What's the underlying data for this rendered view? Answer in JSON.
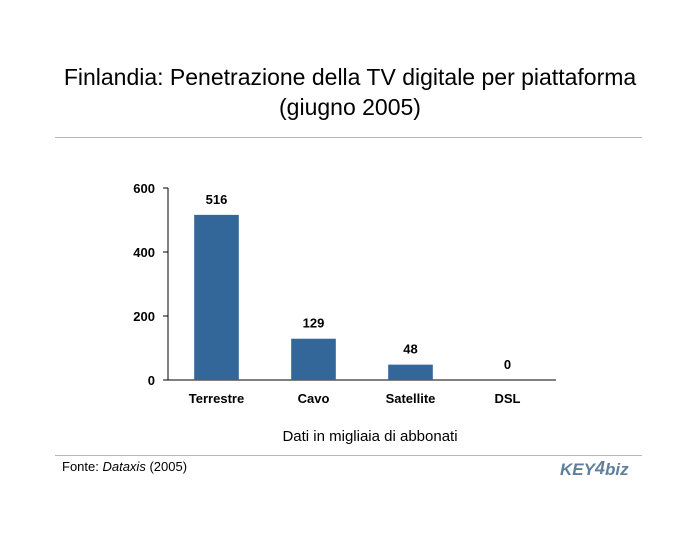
{
  "title": {
    "line1": "Finlandia: Penetrazione della TV digitale per piattaforma",
    "line2": "(giugno 2005)"
  },
  "chart_data": {
    "type": "bar",
    "categories": [
      "Terrestre",
      "Cavo",
      "Satellite",
      "DSL"
    ],
    "values": [
      516,
      129,
      48,
      0
    ],
    "value_labels": [
      "516",
      "129",
      "48",
      "0"
    ],
    "xlabel": "Dati in migliaia di abbonati",
    "ylabel": "",
    "ylim": [
      0,
      600
    ],
    "yticks": [
      0,
      200,
      400,
      600
    ],
    "grid": false,
    "legend": "none",
    "bar_color": "#336699"
  },
  "source": {
    "prefix": "Fonte: ",
    "name": "Dataxis",
    "suffix": " (2005)"
  },
  "logo": {
    "part1": "KEY",
    "part2": "4",
    "part3": "biz",
    "color": "#5f7f9e"
  }
}
